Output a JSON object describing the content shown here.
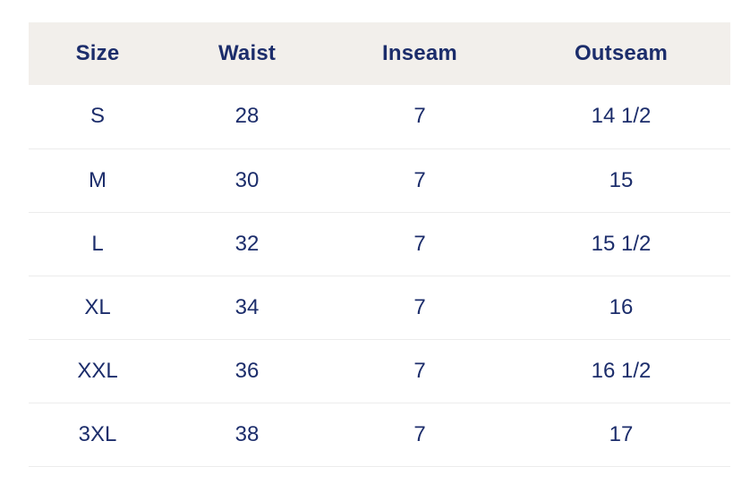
{
  "colors": {
    "text_navy": "#1c2d6b",
    "header_background": "#f2efeb",
    "row_divider": "#ececec",
    "page_background": "#ffffff"
  },
  "size_chart": {
    "columns": [
      "Size",
      "Waist",
      "Inseam",
      "Outseam"
    ],
    "rows": [
      [
        "S",
        "28",
        "7",
        "14 1/2"
      ],
      [
        "M",
        "30",
        "7",
        "15"
      ],
      [
        "L",
        "32",
        "7",
        "15 1/2"
      ],
      [
        "XL",
        "34",
        "7",
        "16"
      ],
      [
        "XXL",
        "36",
        "7",
        "16 1/2"
      ],
      [
        "3XL",
        "38",
        "7",
        "17"
      ]
    ]
  }
}
